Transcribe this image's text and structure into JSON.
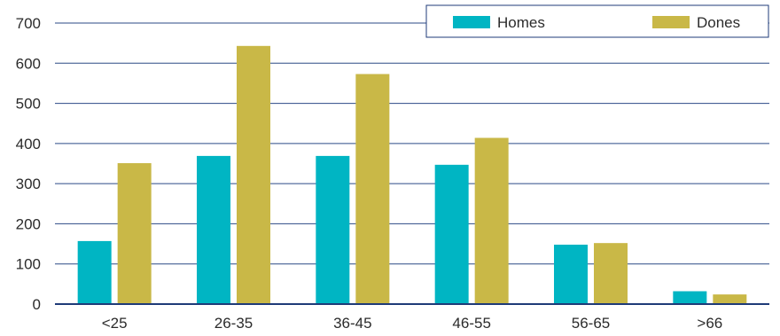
{
  "chart_data": {
    "type": "bar",
    "categories": [
      "<25",
      "26-35",
      "36-45",
      "46-55",
      "56-65",
      ">66"
    ],
    "series": [
      {
        "name": "Homes",
        "values": [
          157,
          369,
          369,
          347,
          148,
          32
        ],
        "color": "#00b5c3"
      },
      {
        "name": "Dones",
        "values": [
          351,
          643,
          573,
          414,
          152,
          24
        ],
        "color": "#c9b847"
      }
    ],
    "ylim": [
      0,
      700
    ],
    "yticks": [
      0,
      100,
      200,
      300,
      400,
      500,
      600,
      700
    ],
    "grid": true,
    "legend_position": "top-right",
    "axis_color": "#1f3b78",
    "grid_color": "#2b4a86"
  }
}
